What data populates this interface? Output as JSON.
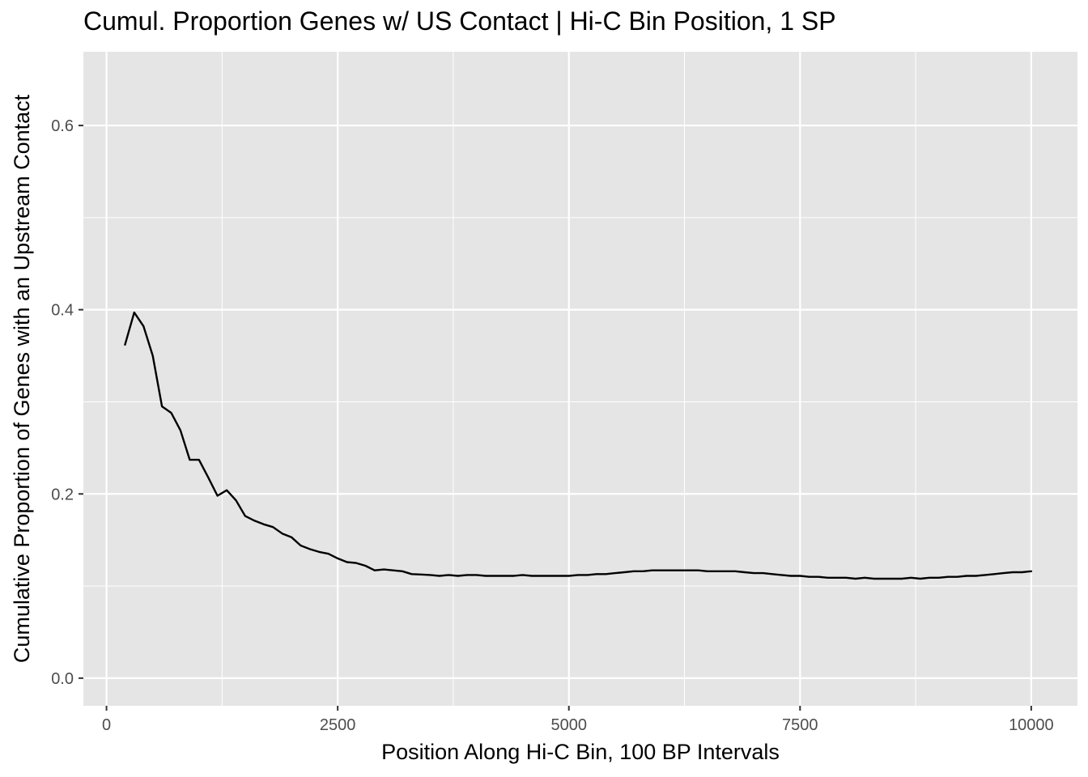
{
  "chart_data": {
    "type": "line",
    "title": "Cumul. Proportion Genes w/ US Contact | Hi-C Bin Position, 1 SP",
    "xlabel": "Position Along Hi-C Bin, 100 BP Intervals",
    "ylabel": "Cumulative Proportion of Genes with an Upstream Contact",
    "xlim": [
      -250,
      10500
    ],
    "ylim": [
      -0.03,
      0.68
    ],
    "x_ticks": [
      0,
      2500,
      5000,
      7500,
      10000
    ],
    "x_tick_labels": [
      "0",
      "2500",
      "5000",
      "7500",
      "10000"
    ],
    "y_ticks": [
      0.0,
      0.2,
      0.4,
      0.6
    ],
    "y_tick_labels": [
      "0.0",
      "0.2",
      "0.4",
      "0.6"
    ],
    "grid": true,
    "panel_background": "#e5e5e5",
    "grid_color": "#ffffff",
    "line_color": "#000000",
    "series": [
      {
        "x": [
          200,
          300,
          400,
          500,
          600,
          700,
          800,
          900,
          1000,
          1100,
          1200,
          1300,
          1400,
          1500,
          1600,
          1700,
          1800,
          1900,
          2000,
          2100,
          2200,
          2300,
          2400,
          2500,
          2600,
          2700,
          2800,
          2900,
          3000,
          3100,
          3200,
          3300,
          3400,
          3500,
          3600,
          3700,
          3800,
          3900,
          4000,
          4100,
          4200,
          4300,
          4400,
          4500,
          4600,
          4700,
          4800,
          4900,
          5000,
          5100,
          5200,
          5300,
          5400,
          5500,
          5600,
          5700,
          5800,
          5900,
          6000,
          6100,
          6200,
          6300,
          6400,
          6500,
          6600,
          6700,
          6800,
          6900,
          7000,
          7100,
          7200,
          7300,
          7400,
          7500,
          7600,
          7700,
          7800,
          7900,
          8000,
          8100,
          8200,
          8300,
          8400,
          8500,
          8600,
          8700,
          8800,
          8900,
          9000,
          9100,
          9200,
          9300,
          9400,
          9500,
          9600,
          9700,
          9800,
          9900,
          10000
        ],
        "y": [
          0.362,
          0.397,
          0.382,
          0.35,
          0.295,
          0.288,
          0.269,
          0.237,
          0.237,
          0.218,
          0.198,
          0.204,
          0.193,
          0.176,
          0.171,
          0.167,
          0.164,
          0.157,
          0.153,
          0.144,
          0.14,
          0.137,
          0.135,
          0.13,
          0.126,
          0.125,
          0.122,
          0.117,
          0.118,
          0.117,
          0.116,
          0.113,
          0.1125,
          0.112,
          0.111,
          0.112,
          0.111,
          0.112,
          0.112,
          0.111,
          0.111,
          0.111,
          0.111,
          0.112,
          0.111,
          0.111,
          0.111,
          0.111,
          0.111,
          0.112,
          0.112,
          0.113,
          0.113,
          0.114,
          0.115,
          0.116,
          0.116,
          0.117,
          0.117,
          0.117,
          0.117,
          0.117,
          0.117,
          0.116,
          0.116,
          0.116,
          0.116,
          0.115,
          0.114,
          0.114,
          0.113,
          0.112,
          0.111,
          0.111,
          0.11,
          0.11,
          0.109,
          0.109,
          0.109,
          0.108,
          0.109,
          0.108,
          0.108,
          0.108,
          0.108,
          0.109,
          0.108,
          0.109,
          0.109,
          0.11,
          0.11,
          0.111,
          0.111,
          0.112,
          0.113,
          0.114,
          0.115,
          0.115,
          0.116
        ]
      }
    ]
  }
}
